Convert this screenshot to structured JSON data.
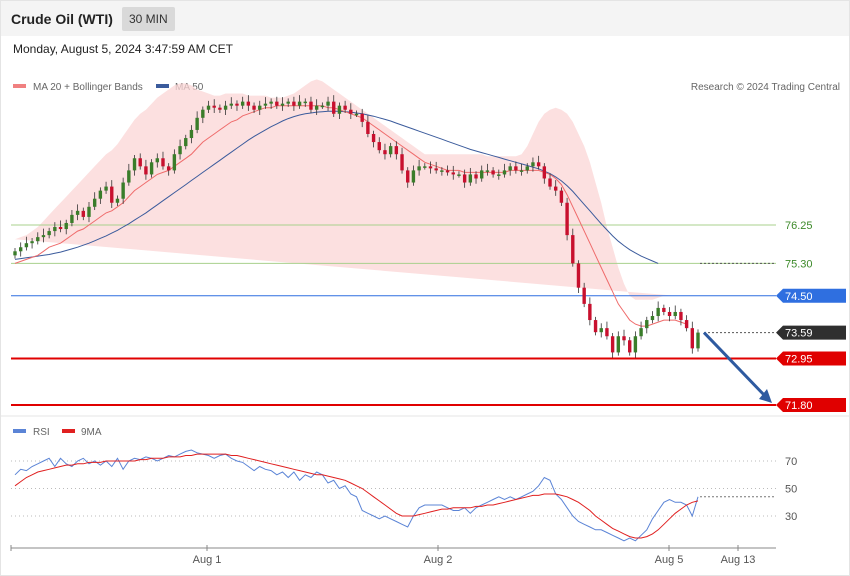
{
  "header": {
    "title": "Crude Oil (WTI)",
    "timeframe": "30 MIN"
  },
  "datetime": "Monday, August 5, 2024 3:47:59 AM CET",
  "legend": {
    "ma_bb": "MA 20 + Bollinger Bands",
    "ma50": "MA 50",
    "copyright": "Research © 2024 Trading Central"
  },
  "colors": {
    "up": "#3a7d2a",
    "down": "#c8102e",
    "ma20": "#ef6b6b",
    "ma50": "#3b5b9c",
    "band": "#fbd6d6",
    "rsi": "#5b84d6",
    "rsi_ma": "#e02020",
    "arrow": "#2e5aa0"
  },
  "levels": [
    {
      "label": "76.25",
      "value": 76.25,
      "style": "green"
    },
    {
      "label": "75.30",
      "value": 75.3,
      "style": "green"
    },
    {
      "label": "74.50",
      "value": 74.5,
      "style": "blue"
    },
    {
      "label": "73.59",
      "value": 73.59,
      "style": "current"
    },
    {
      "label": "72.95",
      "value": 72.95,
      "style": "red"
    },
    {
      "label": "71.80",
      "value": 71.8,
      "style": "red"
    }
  ],
  "chart_data": [
    {
      "type": "candlestick",
      "title": "Crude Oil (WTI)",
      "interval": "30 MIN",
      "x_tick_labels": [
        "Aug 1",
        "Aug 2",
        "Aug 5",
        "Aug 13"
      ],
      "current_price": 73.59,
      "projection": {
        "from": 73.59,
        "to": 71.8,
        "direction": "down"
      },
      "ylim": [
        71.5,
        79.8
      ],
      "close": [
        75.6,
        75.7,
        75.8,
        75.85,
        75.95,
        76.0,
        76.1,
        76.2,
        76.15,
        76.3,
        76.5,
        76.6,
        76.45,
        76.7,
        76.9,
        77.1,
        77.2,
        76.8,
        76.9,
        77.3,
        77.6,
        77.9,
        77.7,
        77.5,
        77.8,
        77.9,
        77.7,
        77.6,
        78.0,
        78.2,
        78.4,
        78.6,
        78.9,
        79.1,
        79.2,
        79.15,
        79.1,
        79.2,
        79.25,
        79.2,
        79.3,
        79.2,
        79.1,
        79.2,
        79.25,
        79.3,
        79.2,
        79.25,
        79.3,
        79.2,
        79.3,
        79.3,
        79.1,
        79.2,
        79.2,
        79.3,
        79.0,
        79.2,
        79.1,
        79.0,
        79.0,
        78.8,
        78.5,
        78.3,
        78.1,
        78.0,
        78.2,
        78.0,
        77.6,
        77.3,
        77.6,
        77.7,
        77.7,
        77.65,
        77.6,
        77.6,
        77.55,
        77.5,
        77.5,
        77.3,
        77.5,
        77.4,
        77.6,
        77.6,
        77.5,
        77.5,
        77.6,
        77.7,
        77.6,
        77.6,
        77.7,
        77.8,
        77.7,
        77.4,
        77.2,
        77.1,
        76.8,
        76.0,
        75.3,
        74.7,
        74.3,
        73.9,
        73.6,
        73.7,
        73.5,
        73.1,
        73.5,
        73.4,
        73.1,
        73.5,
        73.7,
        73.9,
        74.0,
        74.2,
        74.1,
        74.0,
        74.1,
        73.9,
        73.7,
        73.2,
        73.59
      ],
      "open": [
        75.5,
        75.6,
        75.7,
        75.8,
        75.85,
        75.95,
        76.0,
        76.1,
        76.2,
        76.15,
        76.3,
        76.5,
        76.6,
        76.45,
        76.7,
        76.9,
        77.1,
        77.2,
        76.8,
        76.9,
        77.3,
        77.6,
        77.9,
        77.7,
        77.5,
        77.8,
        77.9,
        77.7,
        77.6,
        78.0,
        78.2,
        78.4,
        78.6,
        78.9,
        79.1,
        79.2,
        79.15,
        79.1,
        79.2,
        79.25,
        79.2,
        79.3,
        79.2,
        79.1,
        79.2,
        79.25,
        79.3,
        79.2,
        79.25,
        79.3,
        79.2,
        79.3,
        79.3,
        79.1,
        79.2,
        79.2,
        79.3,
        79.0,
        79.2,
        79.1,
        79.0,
        79.0,
        78.8,
        78.5,
        78.3,
        78.1,
        78.0,
        78.2,
        78.0,
        77.6,
        77.3,
        77.6,
        77.7,
        77.7,
        77.65,
        77.6,
        77.6,
        77.55,
        77.5,
        77.5,
        77.3,
        77.5,
        77.4,
        77.6,
        77.6,
        77.5,
        77.5,
        77.6,
        77.7,
        77.6,
        77.6,
        77.7,
        77.8,
        77.7,
        77.4,
        77.2,
        77.1,
        76.8,
        76.0,
        75.3,
        74.7,
        74.3,
        73.9,
        73.6,
        73.7,
        73.5,
        73.1,
        73.5,
        73.4,
        73.1,
        73.5,
        73.7,
        73.9,
        74.0,
        74.2,
        74.1,
        74.0,
        74.1,
        73.9,
        73.7,
        73.2
      ],
      "ma20": [
        75.3,
        75.35,
        75.4,
        75.45,
        75.5,
        75.6,
        75.7,
        75.75,
        75.8,
        75.9,
        76.0,
        76.1,
        76.15,
        76.25,
        76.35,
        76.45,
        76.55,
        76.6,
        76.7,
        76.8,
        76.95,
        77.1,
        77.2,
        77.3,
        77.4,
        77.5,
        77.55,
        77.6,
        77.7,
        77.8,
        77.9,
        78.0,
        78.15,
        78.3,
        78.4,
        78.5,
        78.6,
        78.7,
        78.8,
        78.85,
        78.95,
        79.0,
        79.05,
        79.1,
        79.15,
        79.15,
        79.2,
        79.2,
        79.2,
        79.2,
        79.2,
        79.2,
        79.2,
        79.2,
        79.2,
        79.15,
        79.15,
        79.1,
        79.05,
        79.0,
        78.95,
        78.9,
        78.8,
        78.7,
        78.6,
        78.5,
        78.4,
        78.3,
        78.2,
        78.1,
        78.0,
        77.9,
        77.8,
        77.75,
        77.7,
        77.65,
        77.6,
        77.6,
        77.6,
        77.55,
        77.55,
        77.55,
        77.55,
        77.55,
        77.55,
        77.55,
        77.55,
        77.6,
        77.6,
        77.6,
        77.6,
        77.6,
        77.6,
        77.55,
        77.5,
        77.4,
        77.25,
        77.0,
        76.7,
        76.4,
        76.1,
        75.8,
        75.5,
        75.2,
        74.9,
        74.6,
        74.3,
        74.1,
        73.9,
        73.8,
        73.75,
        73.75,
        73.8,
        73.85,
        73.9,
        73.9,
        73.9,
        73.85,
        73.8
      ],
      "ma50": [
        75.4,
        75.42,
        75.44,
        75.46,
        75.48,
        75.5,
        75.52,
        75.55,
        75.58,
        75.62,
        75.66,
        75.7,
        75.75,
        75.8,
        75.86,
        75.92,
        75.98,
        76.05,
        76.12,
        76.2,
        76.28,
        76.37,
        76.46,
        76.55,
        76.65,
        76.75,
        76.85,
        76.95,
        77.05,
        77.15,
        77.25,
        77.35,
        77.45,
        77.55,
        77.65,
        77.75,
        77.85,
        77.95,
        78.05,
        78.15,
        78.25,
        78.35,
        78.44,
        78.52,
        78.6,
        78.68,
        78.75,
        78.82,
        78.88,
        78.93,
        78.97,
        79.0,
        79.02,
        79.04,
        79.05,
        79.06,
        79.06,
        79.06,
        79.05,
        79.04,
        79.02,
        79.0,
        78.97,
        78.94,
        78.9,
        78.86,
        78.82,
        78.77,
        78.72,
        78.67,
        78.62,
        78.57,
        78.52,
        78.47,
        78.42,
        78.37,
        78.32,
        78.27,
        78.22,
        78.17,
        78.12,
        78.08,
        78.04,
        78.0,
        77.96,
        77.92,
        77.88,
        77.84,
        77.8,
        77.76,
        77.72,
        77.68,
        77.64,
        77.58,
        77.52,
        77.44,
        77.34,
        77.22,
        77.08,
        76.92,
        76.76,
        76.6,
        76.44,
        76.28,
        76.13,
        75.98,
        75.85,
        75.74,
        75.64,
        75.56,
        75.48,
        75.42,
        75.36,
        75.3
      ],
      "bb_upper": [
        75.9,
        75.95,
        76.0,
        76.1,
        76.2,
        76.35,
        76.5,
        76.65,
        76.8,
        76.95,
        77.1,
        77.25,
        77.4,
        77.55,
        77.7,
        77.85,
        78.0,
        78.1,
        78.25,
        78.45,
        78.65,
        78.85,
        79.0,
        79.1,
        79.25,
        79.4,
        79.5,
        79.6,
        79.7,
        79.75,
        79.75,
        79.7,
        79.6,
        79.55,
        79.5,
        79.45,
        79.45,
        79.5,
        79.5,
        79.5,
        79.5,
        79.45,
        79.45,
        79.45,
        79.45,
        79.4,
        79.4,
        79.4,
        79.45,
        79.5,
        79.6,
        79.7,
        79.8,
        79.85,
        79.8,
        79.7,
        79.6,
        79.5,
        79.4,
        79.3,
        79.2,
        79.1,
        79.0,
        78.9,
        78.8,
        78.7,
        78.6,
        78.5,
        78.4,
        78.3,
        78.2,
        78.1,
        78.0,
        78.0,
        78.0,
        78.0,
        78.0,
        78.0,
        78.0,
        78.0,
        78.0,
        78.0,
        78.0,
        77.95,
        77.95,
        77.95,
        77.95,
        77.95,
        77.95,
        78.0,
        78.2,
        78.5,
        78.8,
        79.0,
        79.1,
        79.15,
        79.1,
        79.0,
        78.8,
        78.5,
        78.2,
        77.8,
        77.3,
        76.8,
        76.2,
        75.7,
        75.2,
        74.8,
        74.5,
        74.4,
        74.4,
        74.4,
        74.4,
        74.45,
        74.5,
        74.5,
        74.5
      ],
      "bb_lower": [
        74.9,
        74.85,
        74.8,
        74.8,
        74.8,
        74.85,
        74.9,
        74.95,
        75.0,
        75.05,
        75.1,
        75.15,
        75.2,
        75.25,
        75.3,
        75.4,
        75.5,
        75.6,
        75.7,
        75.8,
        75.9,
        76.05,
        76.2,
        76.35,
        76.5,
        76.6,
        76.7,
        76.8,
        76.9,
        77.0,
        77.1,
        77.3,
        77.5,
        77.7,
        77.9,
        78.1,
        78.3,
        78.45,
        78.6,
        78.7,
        78.8,
        78.85,
        78.9,
        78.95,
        78.95,
        78.95,
        78.95,
        78.95,
        78.95,
        78.9,
        78.8,
        78.7,
        78.6,
        78.5,
        78.4,
        78.3,
        78.2,
        78.1,
        78.0,
        77.9,
        77.8,
        77.65,
        77.45,
        77.25,
        77.1,
        77.0,
        76.95,
        76.9,
        76.9,
        76.9,
        76.95,
        77.0,
        77.05,
        77.1,
        77.15,
        77.2,
        77.2,
        77.2,
        77.2,
        77.2,
        77.2,
        77.2,
        77.2,
        77.2,
        77.15,
        77.15,
        77.15,
        77.2,
        77.2,
        77.15,
        77.0,
        76.7,
        76.4,
        76.0,
        75.6,
        75.1,
        74.6,
        74.1,
        73.6,
        73.2,
        72.8,
        72.5,
        72.2,
        72.0,
        71.8,
        71.7,
        71.7,
        71.8,
        72.0,
        72.3,
        72.6,
        72.9,
        73.0,
        73.1,
        73.1
      ]
    },
    {
      "type": "line",
      "title": "RSI",
      "series": [
        {
          "name": "RSI",
          "values": [
            60,
            64,
            63,
            66,
            68,
            70,
            72,
            66,
            72,
            68,
            66,
            70,
            72,
            68,
            70,
            67,
            70,
            66,
            72,
            64,
            70,
            72,
            71,
            73,
            72,
            70,
            72,
            74,
            73,
            75,
            77,
            78,
            76,
            75,
            74,
            72,
            74,
            75,
            72,
            70,
            69,
            66,
            63,
            66,
            64,
            63,
            60,
            62,
            58,
            62,
            56,
            60,
            58,
            62,
            60,
            54,
            56,
            50,
            52,
            46,
            44,
            34,
            32,
            30,
            28,
            30,
            28,
            26,
            24,
            22,
            30,
            36,
            38,
            38,
            38,
            38,
            36,
            34,
            34,
            36,
            32,
            36,
            38,
            40,
            42,
            44,
            42,
            44,
            42,
            44,
            46,
            48,
            52,
            58,
            56,
            46,
            42,
            36,
            30,
            26,
            24,
            22,
            20,
            20,
            18,
            16,
            14,
            12,
            14,
            12,
            16,
            20,
            28,
            34,
            40,
            42,
            40,
            40,
            38,
            30,
            44
          ]
        },
        {
          "name": "9MA",
          "values": [
            52,
            55,
            58,
            60,
            62,
            63,
            64,
            65,
            66,
            67,
            67,
            68,
            68,
            69,
            69,
            69,
            70,
            70,
            70,
            70,
            70,
            70,
            71,
            71,
            72,
            72,
            72,
            73,
            73,
            73,
            74,
            74,
            75,
            75,
            75,
            75,
            75,
            75,
            74,
            74,
            73,
            72,
            71,
            70,
            69,
            68,
            67,
            66,
            65,
            64,
            63,
            62,
            61,
            60,
            60,
            59,
            58,
            57,
            56,
            54,
            52,
            50,
            47,
            44,
            41,
            38,
            35,
            32,
            30,
            30,
            30,
            31,
            32,
            33,
            34,
            35,
            35,
            36,
            36,
            36,
            36,
            37,
            37,
            38,
            38,
            39,
            40,
            41,
            42,
            43,
            44,
            45,
            45,
            46,
            46,
            46,
            45,
            44,
            42,
            40,
            37,
            34,
            30,
            27,
            24,
            21,
            19,
            17,
            15,
            14,
            14,
            15,
            17,
            20,
            24,
            28,
            32,
            35,
            38,
            40,
            41
          ]
        }
      ],
      "ylim": [
        10,
        90
      ],
      "yticks": [
        70,
        50,
        30
      ]
    }
  ]
}
